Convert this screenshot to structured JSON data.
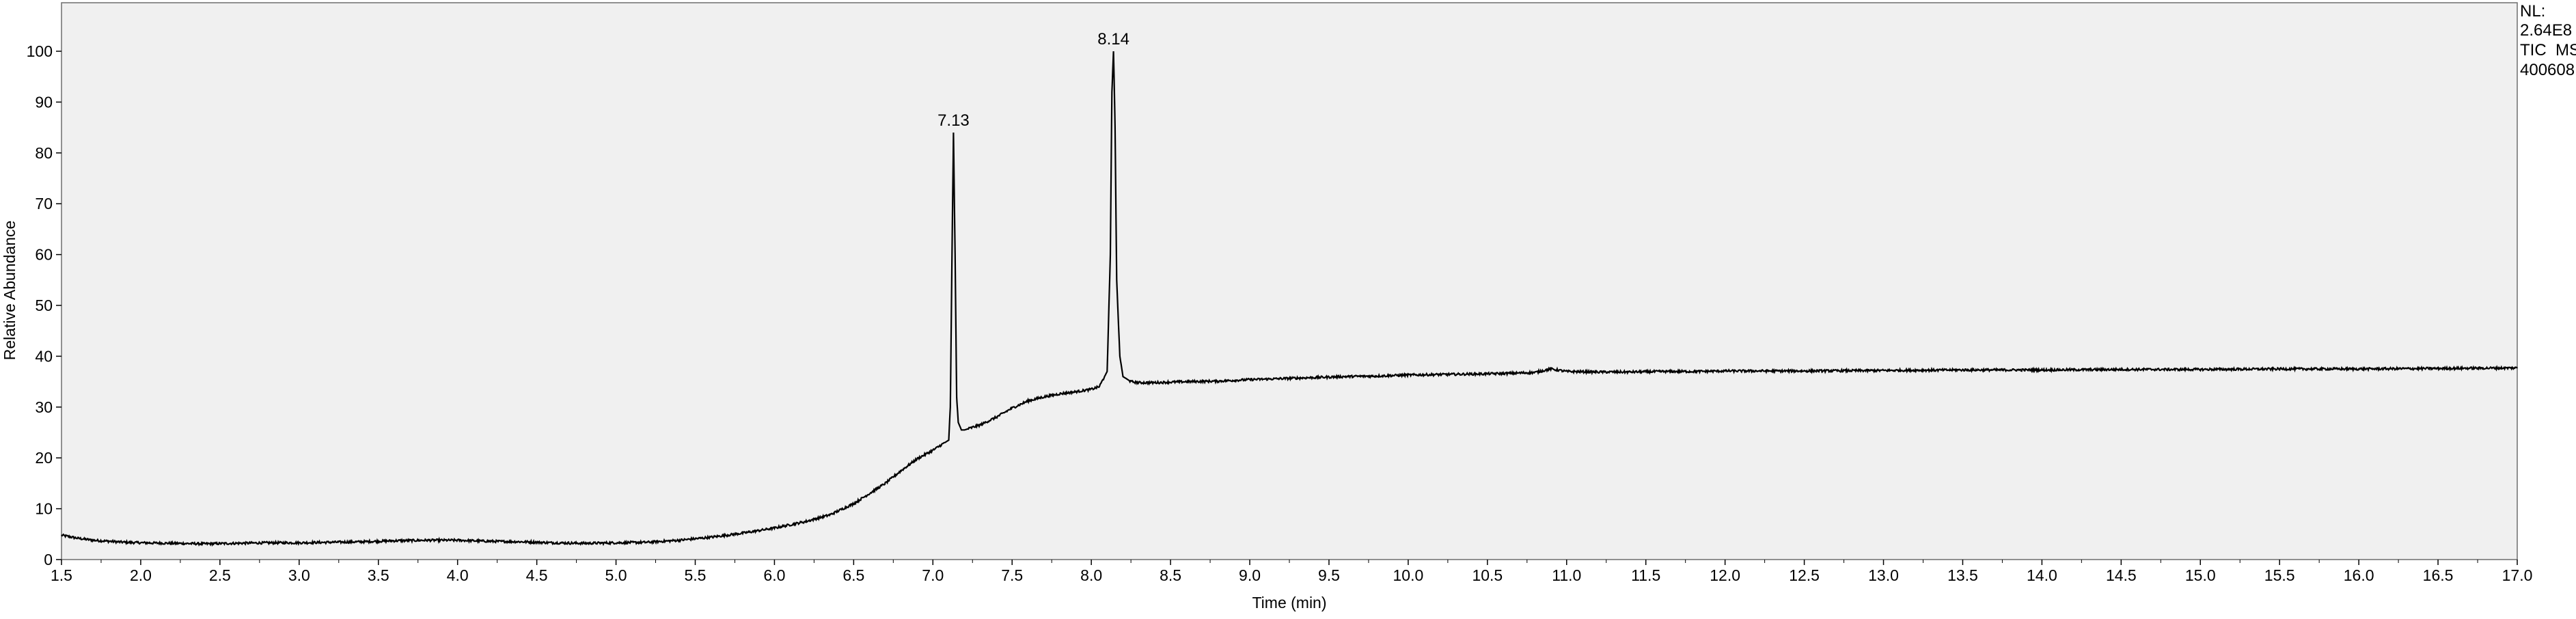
{
  "chart_data": {
    "type": "line",
    "xlabel": "Time (min)",
    "ylabel": "Relative Abundance",
    "xlim": [
      1.5,
      17.0
    ],
    "ylim": [
      0,
      105
    ],
    "xticks": [
      "1.5",
      "2.0",
      "2.5",
      "3.0",
      "3.5",
      "4.0",
      "4.5",
      "5.0",
      "5.5",
      "6.0",
      "6.5",
      "7.0",
      "7.5",
      "8.0",
      "8.5",
      "9.0",
      "9.5",
      "10.0",
      "10.5",
      "11.0",
      "11.5",
      "12.0",
      "12.5",
      "13.0",
      "13.5",
      "14.0",
      "14.5",
      "15.0",
      "15.5",
      "16.0",
      "16.5",
      "17.0"
    ],
    "yticks": [
      "0",
      "10",
      "20",
      "30",
      "40",
      "50",
      "60",
      "70",
      "80",
      "90",
      "100"
    ],
    "grid": false,
    "info_text": [
      "NL:",
      "2.64E8",
      "TIC  MS",
      "400608"
    ],
    "peaks": [
      {
        "label": "7.13",
        "x": 7.13,
        "y": 84
      },
      {
        "label": "8.14",
        "x": 8.14,
        "y": 100
      }
    ],
    "series": [
      {
        "x": [
          1.5,
          1.6,
          1.7,
          1.8,
          1.9,
          2.0,
          2.2,
          2.4,
          2.6,
          2.8,
          3.0,
          3.2,
          3.4,
          3.6,
          3.8,
          4.0,
          4.2,
          4.4,
          4.6,
          4.8,
          5.0,
          5.2,
          5.4,
          5.6,
          5.8,
          6.0,
          6.2,
          6.35,
          6.5,
          6.6,
          6.7,
          6.8,
          6.9,
          7.0,
          7.05,
          7.1,
          7.11,
          7.12,
          7.13,
          7.14,
          7.15,
          7.16,
          7.18,
          7.2,
          7.25,
          7.3,
          7.4,
          7.5,
          7.6,
          7.7,
          7.8,
          7.9,
          8.0,
          8.05,
          8.1,
          8.12,
          8.13,
          8.14,
          8.15,
          8.16,
          8.18,
          8.2,
          8.25,
          8.3,
          8.4,
          8.5,
          8.6,
          8.8,
          9.0,
          9.2,
          9.4,
          9.6,
          9.8,
          10.0,
          10.2,
          10.4,
          10.6,
          10.8,
          10.9,
          11.0,
          11.2,
          11.4,
          11.6,
          11.8,
          12.0,
          12.5,
          13.0,
          13.5,
          14.0,
          14.5,
          15.0,
          15.5,
          16.0,
          16.5,
          17.0
        ],
        "y": [
          4.8,
          4.2,
          3.8,
          3.6,
          3.4,
          3.3,
          3.2,
          3.1,
          3.2,
          3.3,
          3.3,
          3.4,
          3.5,
          3.7,
          3.8,
          3.8,
          3.6,
          3.5,
          3.3,
          3.2,
          3.3,
          3.4,
          3.8,
          4.4,
          5.2,
          6.2,
          7.5,
          8.8,
          11.0,
          13.0,
          15.0,
          17.5,
          19.8,
          21.5,
          22.5,
          23.5,
          30,
          58,
          84,
          60,
          32,
          27,
          25.5,
          25.5,
          26,
          26.5,
          28,
          29.8,
          31.2,
          32.0,
          32.6,
          33.0,
          33.5,
          34,
          37,
          60,
          92,
          100,
          85,
          55,
          40,
          36,
          35,
          34.8,
          34.8,
          34.9,
          35.0,
          35.1,
          35.4,
          35.6,
          35.8,
          36.0,
          36.1,
          36.3,
          36.4,
          36.5,
          36.6,
          36.8,
          37.5,
          37.0,
          36.9,
          36.9,
          37.0,
          37.0,
          37.1,
          37.1,
          37.2,
          37.3,
          37.3,
          37.4,
          37.4,
          37.5,
          37.5,
          37.6,
          37.7
        ]
      }
    ]
  }
}
